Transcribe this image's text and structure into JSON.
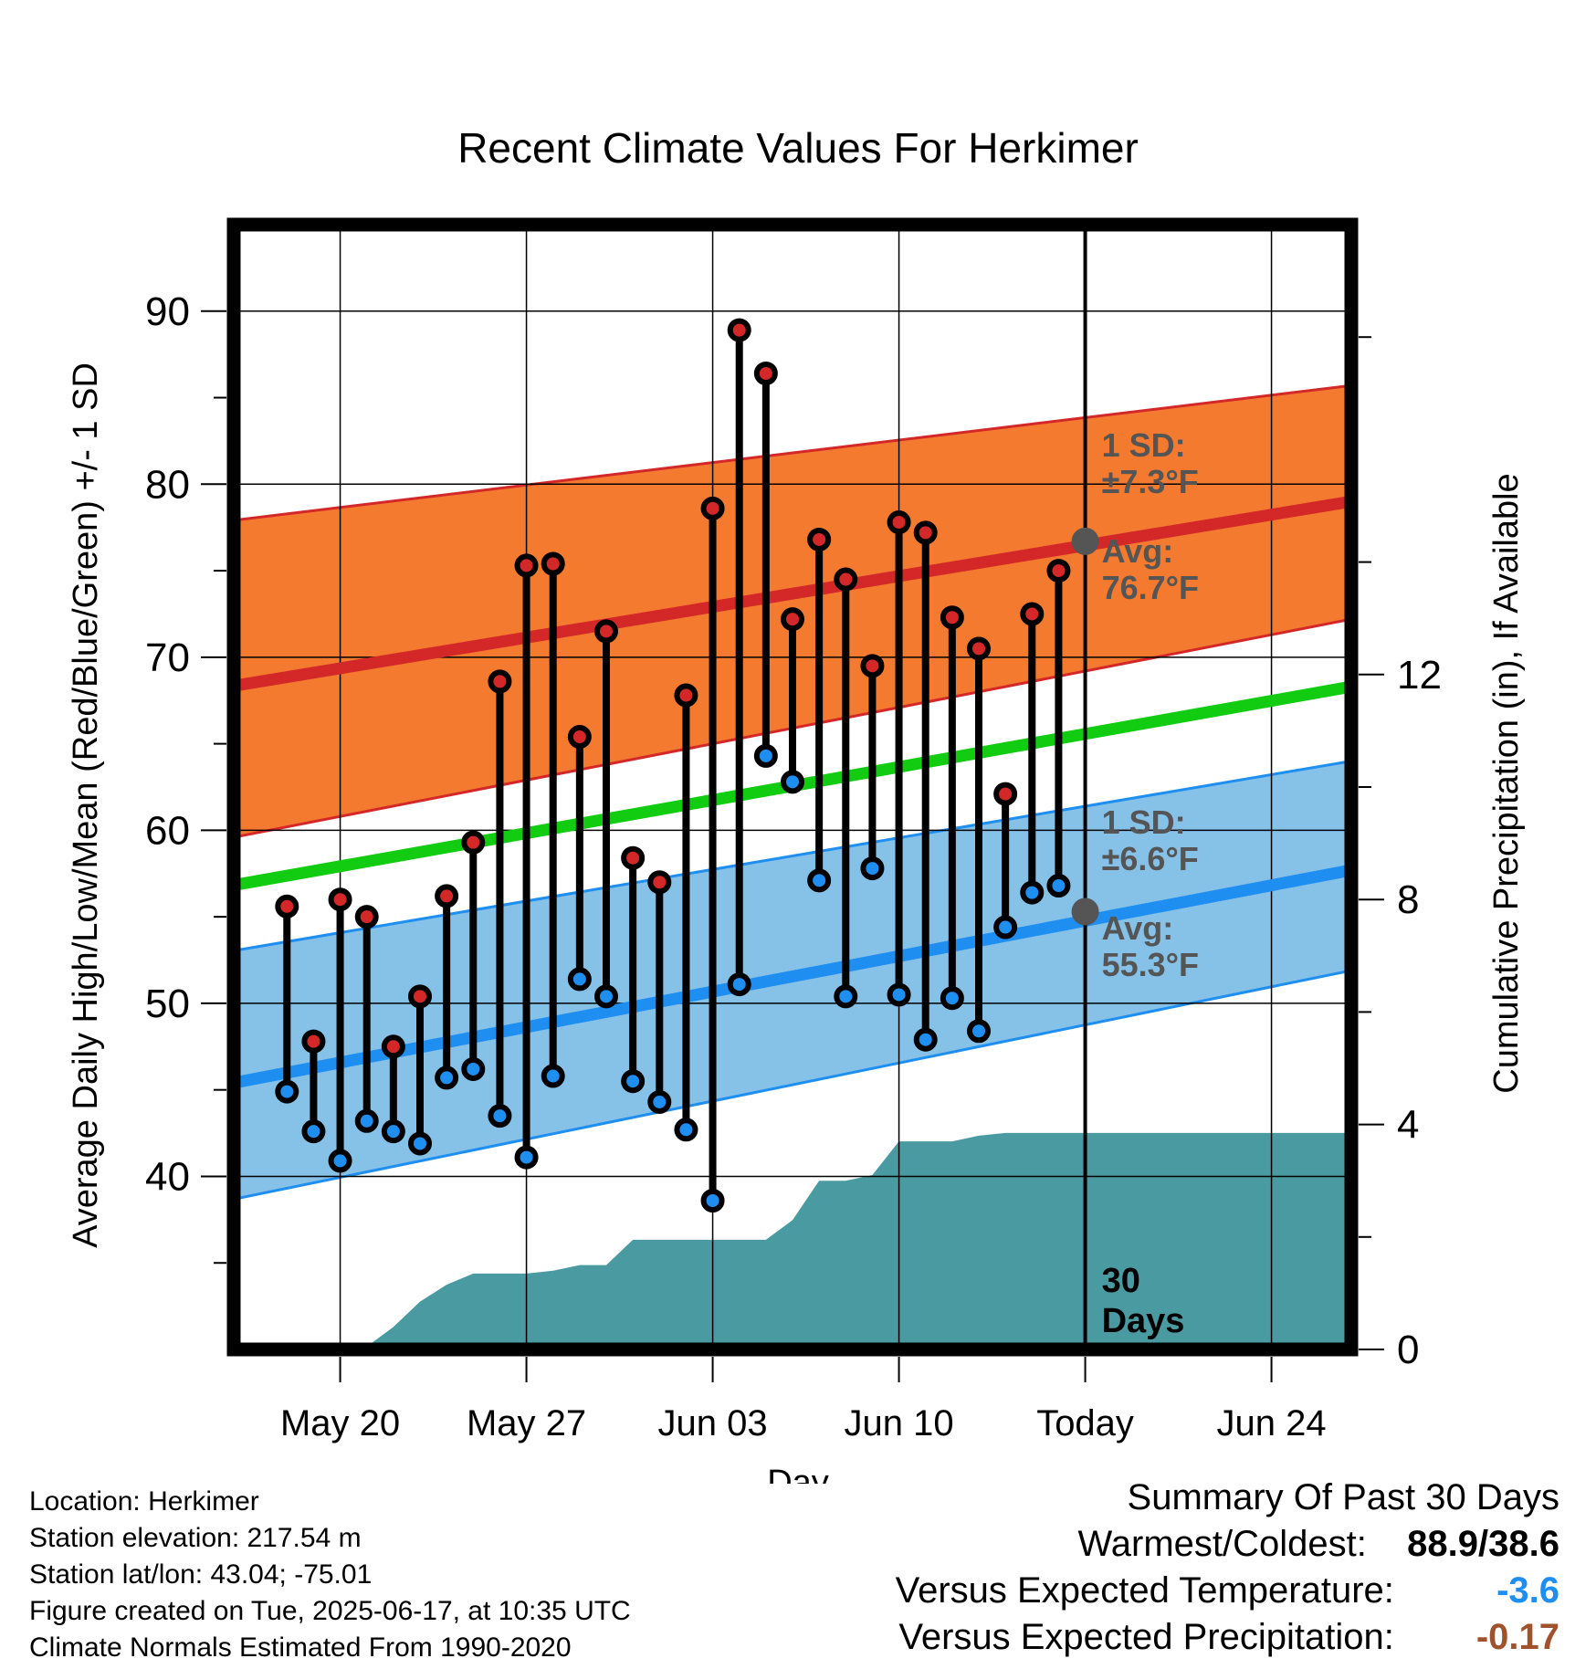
{
  "chart_data": {
    "type": "line",
    "title": "Recent Climate Values For Herkimer",
    "xlabel": "Day",
    "ylabel": "Average Daily High/Low/Mean (Red/Blue/Green) +/- 1 SD",
    "y2label": "Cumulative Precipitation (in), If Available",
    "ylim": [
      30,
      95
    ],
    "y2lim": [
      0,
      20
    ],
    "yticks": [
      "40",
      "50",
      "60",
      "70",
      "80",
      "90"
    ],
    "y2ticks": [
      "0",
      "4",
      "8",
      "12"
    ],
    "xlim": [
      "2025-05-16",
      "2025-06-27"
    ],
    "xticks": [
      {
        "date": "2025-05-20",
        "label": "May 20"
      },
      {
        "date": "2025-05-27",
        "label": "May 27"
      },
      {
        "date": "2025-06-03",
        "label": "Jun 03"
      },
      {
        "date": "2025-06-10",
        "label": "Jun 10"
      },
      {
        "date": "2025-06-17",
        "label": "Today"
      },
      {
        "date": "2025-06-24",
        "label": "Jun 24"
      }
    ],
    "grid": true,
    "today": "2025-06-17",
    "window_label": "30\nDays",
    "normals": {
      "dates": [
        "2025-05-17",
        "2025-06-27"
      ],
      "high_avg": [
        68.6,
        79.0
      ],
      "high_upper": [
        78.1,
        85.7
      ],
      "high_lower": [
        59.9,
        72.2
      ],
      "low_avg": [
        45.7,
        57.7
      ],
      "low_upper": [
        53.3,
        64.0
      ],
      "low_lower": [
        39.0,
        51.9
      ],
      "mean_avg": [
        57.1,
        68.3
      ],
      "colors": {
        "high_band": "#f47a30",
        "high_line": "#d42828",
        "low_band": "#86c1e8",
        "low_line": "#1e8ff0",
        "mean_line": "#11cc11"
      }
    },
    "annotations": {
      "high_sd": "1 SD:\n±7.3°F",
      "high_avg": "Avg:\n76.7°F",
      "low_sd": "1 SD:\n±6.6°F",
      "low_avg": "Avg:\n55.3°F",
      "high_avg_value": 76.7,
      "low_avg_value": 55.3
    },
    "daily": {
      "dates": [
        "2025-05-18",
        "2025-05-19",
        "2025-05-20",
        "2025-05-21",
        "2025-05-22",
        "2025-05-23",
        "2025-05-24",
        "2025-05-25",
        "2025-05-26",
        "2025-05-27",
        "2025-05-28",
        "2025-05-29",
        "2025-05-30",
        "2025-05-31",
        "2025-06-01",
        "2025-06-02",
        "2025-06-03",
        "2025-06-04",
        "2025-06-05",
        "2025-06-06",
        "2025-06-07",
        "2025-06-08",
        "2025-06-09",
        "2025-06-10",
        "2025-06-11",
        "2025-06-12",
        "2025-06-13",
        "2025-06-14",
        "2025-06-15",
        "2025-06-16"
      ],
      "high": [
        55.6,
        47.8,
        56.0,
        55.0,
        47.5,
        50.4,
        56.2,
        59.3,
        68.6,
        75.3,
        75.4,
        65.4,
        71.5,
        58.4,
        57.0,
        67.8,
        78.6,
        88.9,
        86.4,
        72.2,
        76.8,
        74.5,
        69.5,
        77.8,
        77.2,
        72.3,
        70.5,
        62.1,
        72.5,
        75.0
      ],
      "low": [
        44.9,
        42.6,
        40.9,
        43.2,
        42.6,
        41.9,
        45.7,
        46.2,
        43.5,
        41.1,
        45.8,
        51.4,
        50.4,
        45.5,
        44.3,
        42.7,
        38.6,
        51.1,
        64.3,
        62.8,
        57.1,
        50.4,
        57.8,
        50.5,
        47.9,
        50.3,
        48.4,
        54.4,
        56.4,
        56.8
      ],
      "colors": {
        "high_dot": "#d42828",
        "low_dot": "#1e8ff0",
        "stem": "#000000"
      }
    },
    "precipitation": {
      "dates": [
        "2025-05-19",
        "2025-05-20",
        "2025-05-21",
        "2025-05-22",
        "2025-05-23",
        "2025-05-24",
        "2025-05-25",
        "2025-05-26",
        "2025-05-27",
        "2025-05-28",
        "2025-05-29",
        "2025-05-30",
        "2025-05-31",
        "2025-06-01",
        "2025-06-02",
        "2025-06-03",
        "2025-06-04",
        "2025-06-05",
        "2025-06-06",
        "2025-06-07",
        "2025-06-08",
        "2025-06-09",
        "2025-06-10",
        "2025-06-11",
        "2025-06-12",
        "2025-06-13",
        "2025-06-14",
        "2025-06-15",
        "2025-06-16",
        "2025-06-17",
        "2025-06-27"
      ],
      "cumulative": [
        0.0,
        0.0,
        0.05,
        0.4,
        0.85,
        1.15,
        1.35,
        1.35,
        1.35,
        1.4,
        1.5,
        1.5,
        1.95,
        1.95,
        1.95,
        1.95,
        1.95,
        1.95,
        2.3,
        3.0,
        3.0,
        3.1,
        3.7,
        3.7,
        3.7,
        3.8,
        3.85,
        3.85,
        3.85,
        3.85,
        3.85
      ],
      "color": "#4a9aa2"
    }
  },
  "footer": {
    "location": "Location: Herkimer",
    "elevation": "Station elevation: 217.54 m",
    "latlon": "Station lat/lon: 43.04; -75.01",
    "created": "Figure created on Tue, 2025-06-17, at 10:35 UTC",
    "normals": "Climate Normals Estimated From 1990-2020"
  },
  "summary": {
    "title": "Summary Of Past 30 Days",
    "warm_cold_label": "Warmest/Coldest:",
    "warm_cold_value": "88.9/38.6",
    "temp_label": "Versus Expected Temperature:",
    "temp_value": "-3.6",
    "temp_color": "#1e8ff0",
    "precip_label": "Versus Expected Precipitation:",
    "precip_value": "-0.17",
    "precip_color": "#a0522d"
  }
}
